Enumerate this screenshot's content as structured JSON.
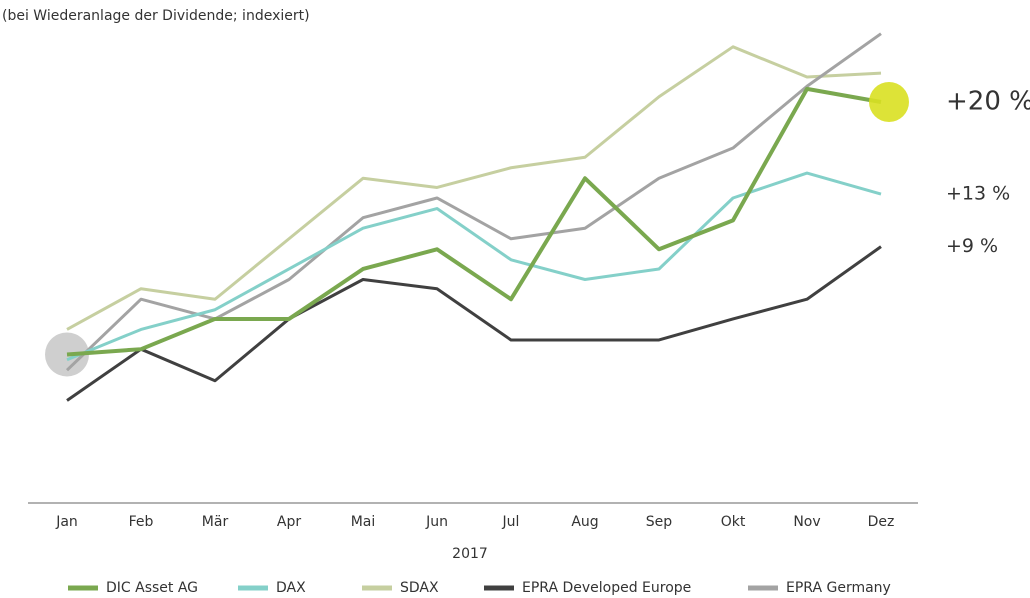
{
  "chart_data": {
    "type": "line",
    "subtitle": "(bei Wiederanlage der Dividende; indexiert)",
    "x_label": "2017",
    "categories": [
      "Jan",
      "Feb",
      "Mär",
      "Apr",
      "Mai",
      "Jun",
      "Jul",
      "Aug",
      "Sep",
      "Okt",
      "Nov",
      "Dez"
    ],
    "ylim": [
      -10.5,
      27
    ],
    "series": [
      {
        "name": "DIC Asset AG",
        "color": "#7aa84f",
        "values": [
          0.8,
          1.2,
          3.5,
          3.5,
          7.3,
          8.8,
          5,
          14.2,
          8.8,
          11,
          21,
          20
        ],
        "label": "+20 %"
      },
      {
        "name": "DAX",
        "color": "#84d0c9",
        "values": [
          0.4,
          2.7,
          4.2,
          7.3,
          10.4,
          11.9,
          8,
          6.5,
          7.3,
          12.7,
          14.6,
          13
        ],
        "label": "+13 %"
      },
      {
        "name": "SDAX",
        "color": "#c6cfa0",
        "values": [
          2.7,
          5.8,
          5,
          9.6,
          14.2,
          13.5,
          15,
          15.8,
          20.4,
          24.2,
          21.9,
          22.2
        ]
      },
      {
        "name": "EPRA Developed Europe",
        "color": "#404040",
        "values": [
          -2.7,
          1.2,
          -1.2,
          3.5,
          6.5,
          5.8,
          1.9,
          1.9,
          1.9,
          3.5,
          5,
          9
        ],
        "label": "+9 %"
      },
      {
        "name": "EPRA Germany",
        "color": "#a3a3a3",
        "values": [
          -0.4,
          5,
          3.5,
          6.5,
          11.2,
          12.7,
          9.6,
          10.4,
          14.2,
          16.5,
          21.2,
          25.2
        ]
      }
    ]
  }
}
